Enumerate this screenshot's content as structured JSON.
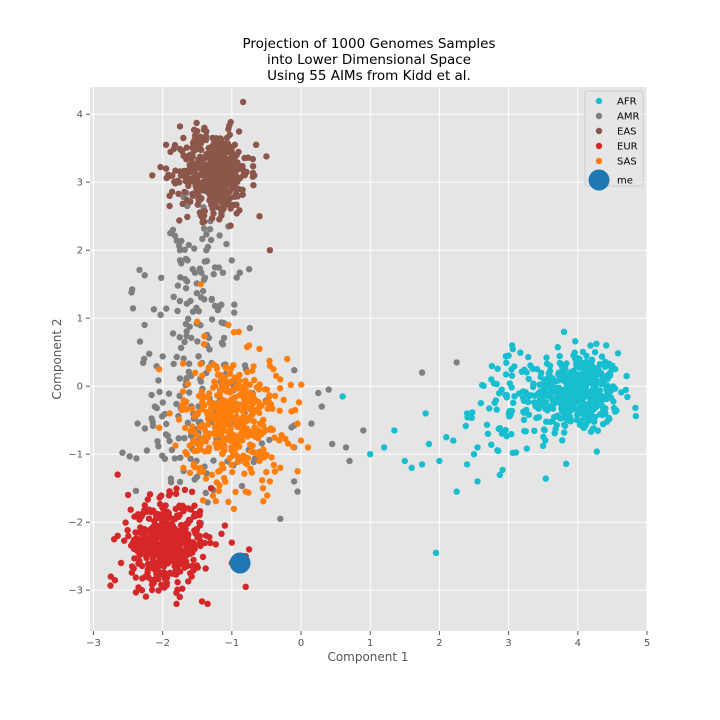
{
  "chart_data": {
    "type": "scatter",
    "title_lines": [
      "Projection of 1000 Genomes Samples",
      "into Lower Dimensional Space",
      "Using 55 AIMs from Kidd et al."
    ],
    "xlabel": "Component 1",
    "ylabel": "Component 2",
    "xlim": [
      -3.05,
      5.0
    ],
    "ylim": [
      -3.6,
      4.4
    ],
    "xticks": [
      -3,
      -2,
      -1,
      0,
      1,
      2,
      3,
      4,
      5
    ],
    "yticks": [
      -3,
      -2,
      -1,
      0,
      1,
      2,
      3,
      4
    ],
    "grid": true,
    "legend_position": "top-right",
    "series": [
      {
        "name": "AFR",
        "color": "#17becf",
        "marker_size": "small",
        "clusters": [
          {
            "center": [
              4.0,
              -0.1
            ],
            "spread": [
              0.3,
              0.3
            ],
            "count": 420
          },
          {
            "center": [
              3.2,
              -0.3
            ],
            "spread": [
              0.35,
              0.4
            ],
            "count": 90
          }
        ],
        "points": [
          [
            1.8,
            -0.4
          ],
          [
            1.85,
            -0.85
          ],
          [
            1.75,
            -1.15
          ],
          [
            1.5,
            -1.1
          ],
          [
            1.35,
            -0.65
          ],
          [
            1.2,
            -0.9
          ],
          [
            1.0,
            -1.0
          ],
          [
            0.6,
            -0.15
          ],
          [
            1.95,
            -2.45
          ],
          [
            2.25,
            -1.55
          ],
          [
            2.55,
            -1.4
          ],
          [
            2.4,
            -1.15
          ],
          [
            2.1,
            -0.75
          ],
          [
            2.4,
            -0.4
          ],
          [
            2.6,
            -0.25
          ],
          [
            2.75,
            0.1
          ],
          [
            2.9,
            -0.05
          ],
          [
            2.85,
            -0.95
          ],
          [
            3.0,
            0.45
          ],
          [
            3.05,
            0.6
          ],
          [
            2.2,
            -0.8
          ],
          [
            2.5,
            -1.0
          ],
          [
            3.8,
            0.8
          ],
          [
            4.25,
            0.5
          ],
          [
            4.5,
            0.3
          ],
          [
            2.0,
            -1.1
          ],
          [
            2.7,
            -0.7
          ],
          [
            2.55,
            -0.9
          ],
          [
            1.6,
            -1.2
          ]
        ]
      },
      {
        "name": "AMR",
        "color": "#7f7f7f",
        "marker_size": "small",
        "clusters": [
          {
            "center": [
              -1.45,
              -0.5
            ],
            "spread": [
              0.45,
              0.55
            ],
            "count": 130
          },
          {
            "center": [
              -1.6,
              0.8
            ],
            "spread": [
              0.35,
              0.55
            ],
            "count": 70
          },
          {
            "center": [
              -1.5,
              2.0
            ],
            "spread": [
              0.3,
              0.45
            ],
            "count": 45
          }
        ],
        "points": [
          [
            -2.45,
            1.38
          ],
          [
            -1.85,
            2.3
          ],
          [
            -1.75,
            2.0
          ],
          [
            -1.3,
            2.15
          ],
          [
            -1.05,
            2.35
          ],
          [
            -0.75,
            1.72
          ],
          [
            -1.0,
            1.85
          ],
          [
            0.4,
            -0.05
          ],
          [
            0.3,
            -0.3
          ],
          [
            0.45,
            -0.85
          ],
          [
            0.7,
            -1.1
          ],
          [
            0.9,
            -0.65
          ],
          [
            -0.05,
            -1.55
          ],
          [
            -0.3,
            -1.95
          ],
          [
            0.15,
            -0.55
          ],
          [
            -0.1,
            -0.9
          ],
          [
            0.65,
            -0.9
          ],
          [
            1.75,
            0.2
          ],
          [
            2.25,
            0.35
          ],
          [
            0.25,
            -0.1
          ],
          [
            -0.1,
            -1.4
          ]
        ]
      },
      {
        "name": "EAS",
        "color": "#8c564b",
        "marker_size": "small",
        "clusters": [
          {
            "center": [
              -1.25,
              3.15
            ],
            "spread": [
              0.25,
              0.3
            ],
            "count": 460
          }
        ],
        "points": [
          [
            -2.15,
            3.1
          ],
          [
            -1.75,
            3.82
          ],
          [
            -1.7,
            3.65
          ],
          [
            -1.5,
            3.75
          ],
          [
            -1.05,
            3.78
          ],
          [
            -0.65,
            3.55
          ],
          [
            -0.5,
            3.38
          ],
          [
            -0.45,
            2.0
          ],
          [
            -0.6,
            2.5
          ],
          [
            -1.9,
            2.8
          ],
          [
            -1.9,
            2.65
          ],
          [
            -1.4,
            2.42
          ],
          [
            -1.15,
            2.55
          ],
          [
            -1.95,
            3.55
          ],
          [
            -1.95,
            3.2
          ]
        ]
      },
      {
        "name": "EUR",
        "color": "#d62728",
        "marker_size": "small",
        "clusters": [
          {
            "center": [
              -1.95,
              -2.3
            ],
            "spread": [
              0.25,
              0.3
            ],
            "count": 480
          }
        ],
        "points": [
          [
            -2.65,
            -1.3
          ],
          [
            -2.65,
            -2.2
          ],
          [
            -2.6,
            -2.6
          ],
          [
            -2.75,
            -2.8
          ],
          [
            -1.35,
            -3.2
          ],
          [
            -1.6,
            -2.75
          ],
          [
            -0.8,
            -2.95
          ],
          [
            -0.8,
            -2.5
          ],
          [
            -0.75,
            -2.4
          ],
          [
            -1.3,
            -1.5
          ],
          [
            -1.1,
            -2.05
          ],
          [
            -1.0,
            -2.3
          ],
          [
            -0.9,
            -2.65
          ],
          [
            -2.5,
            -1.6
          ],
          [
            -2.3,
            -3.0
          ],
          [
            -1.8,
            -3.2
          ],
          [
            -1.0,
            -2.6
          ],
          [
            -2.7,
            -2.25
          ]
        ]
      },
      {
        "name": "SAS",
        "color": "#ff7f0e",
        "marker_size": "small",
        "clusters": [
          {
            "center": [
              -1.0,
              -0.5
            ],
            "spread": [
              0.35,
              0.45
            ],
            "count": 420
          }
        ],
        "points": [
          [
            -1.5,
            0.95
          ],
          [
            -1.05,
            0.9
          ],
          [
            -0.9,
            0.8
          ],
          [
            -0.75,
            0.6
          ],
          [
            -0.6,
            0.55
          ],
          [
            -0.45,
            0.3
          ],
          [
            -0.3,
            0.1
          ],
          [
            0.0,
            -0.8
          ],
          [
            0.1,
            -0.9
          ],
          [
            -0.05,
            -0.55
          ],
          [
            -0.3,
            -1.2
          ],
          [
            -0.45,
            -1.4
          ],
          [
            -0.6,
            -1.1
          ],
          [
            -1.7,
            -1.2
          ],
          [
            -1.9,
            -0.4
          ],
          [
            -2.05,
            0.25
          ],
          [
            -1.05,
            -1.7
          ],
          [
            -0.8,
            -1.55
          ],
          [
            -0.55,
            -1.5
          ],
          [
            -0.25,
            -0.2
          ],
          [
            -0.4,
            0.25
          ],
          [
            -1.45,
            1.5
          ],
          [
            -0.05,
            -1.25
          ],
          [
            -0.2,
            0.4
          ]
        ]
      },
      {
        "name": "me",
        "color": "#1f77b4",
        "marker_size": "large",
        "points": [
          [
            -0.88,
            -2.6
          ]
        ]
      }
    ]
  }
}
